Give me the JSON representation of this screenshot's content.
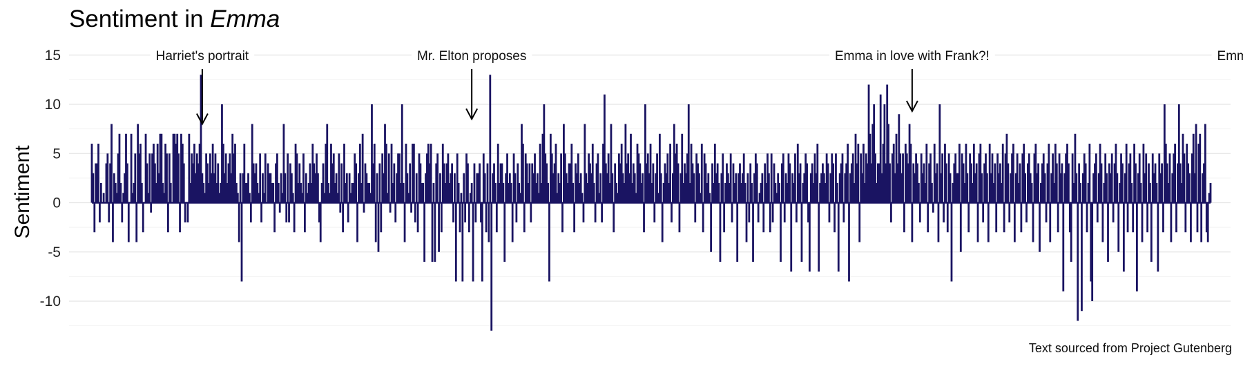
{
  "chart_data": {
    "type": "bar",
    "title_prefix": "Sentiment in ",
    "title_italic": "Emma",
    "ylabel": "Sentiment",
    "caption": "Text sourced from Project Gutenberg",
    "ylim": [
      -12.5,
      15
    ],
    "yticks": [
      -10,
      -5,
      0,
      5,
      10,
      15
    ],
    "grid": true,
    "bar_color": "#1a1462",
    "grid_color": "#e4e4e4",
    "minor_grid_color": "#f2f2f2",
    "x_start": 1,
    "values": [
      6,
      3,
      -3,
      4,
      4,
      6,
      -2,
      2,
      0,
      1,
      0,
      4,
      5,
      -2,
      4,
      8,
      -4,
      3,
      2,
      1,
      5,
      7,
      2,
      -2,
      1,
      3,
      7,
      4,
      -4,
      0,
      7,
      1,
      2,
      5,
      -4,
      8,
      5,
      6,
      2,
      -3,
      0,
      7,
      4,
      1,
      5,
      -1,
      5,
      6,
      4,
      2,
      6,
      3,
      7,
      7,
      2,
      1,
      6,
      5,
      -3,
      5,
      2,
      0,
      7,
      7,
      6,
      7,
      5,
      -3,
      7,
      6,
      4,
      -2,
      0,
      -2,
      7,
      2,
      5,
      4,
      6,
      3,
      5,
      4,
      6,
      13,
      3,
      2,
      1,
      5,
      4,
      2,
      5,
      3,
      6,
      3,
      5,
      2,
      4,
      1,
      2,
      10,
      6,
      3,
      5,
      2,
      4,
      5,
      3,
      7,
      5,
      6,
      2,
      1,
      -4,
      3,
      -8,
      3,
      6,
      2,
      2,
      3,
      1,
      -2,
      8,
      4,
      3,
      4,
      2,
      1,
      5,
      -2,
      3,
      1,
      5,
      0,
      4,
      3,
      3,
      2,
      2,
      -3,
      4,
      5,
      2,
      -1,
      3,
      1,
      8,
      3,
      -2,
      5,
      -2,
      4,
      3,
      1,
      -3,
      6,
      5,
      2,
      4,
      2,
      1,
      5,
      -3,
      3,
      1,
      2,
      4,
      2,
      6,
      4,
      3,
      5,
      3,
      -2,
      -4,
      2,
      4,
      1,
      6,
      8,
      2,
      1,
      6,
      4,
      5,
      2,
      3,
      1,
      5,
      -1,
      4,
      -3,
      6,
      2,
      3,
      -2,
      3,
      1,
      2,
      2,
      5,
      4,
      -4,
      3,
      6,
      2,
      7,
      -1,
      4,
      3,
      2,
      2,
      1,
      10,
      4,
      6,
      -4,
      3,
      -5,
      4,
      -3,
      5,
      3,
      8,
      6,
      1,
      5,
      -1,
      6,
      2,
      4,
      -2,
      3,
      5,
      5,
      2,
      10,
      2,
      -4,
      6,
      3,
      1,
      4,
      -1,
      6,
      6,
      -2,
      3,
      -3,
      5,
      4,
      2,
      2,
      -6,
      3,
      5,
      6,
      4,
      6,
      -6,
      2,
      -6,
      4,
      5,
      -5,
      3,
      -3,
      6,
      4,
      2,
      4,
      5,
      2,
      3,
      4,
      -2,
      3,
      -8,
      5,
      2,
      -3,
      1,
      -8,
      3,
      -2,
      5,
      4,
      -3,
      1,
      2,
      -8,
      4,
      -2,
      3,
      3,
      4,
      -2,
      -8,
      5,
      3,
      -3,
      4,
      -4,
      13,
      -13,
      3,
      4,
      2,
      -3,
      6,
      2,
      4,
      4,
      2,
      -6,
      3,
      5,
      2,
      3,
      2,
      -4,
      5,
      3,
      -2,
      4,
      2,
      1,
      8,
      6,
      -3,
      5,
      4,
      2,
      4,
      -2,
      4,
      3,
      5,
      2,
      3,
      1,
      6,
      2,
      7,
      10,
      5,
      4,
      2,
      -8,
      7,
      5,
      3,
      4,
      6,
      1,
      3,
      2,
      5,
      -3,
      8,
      5,
      3,
      2,
      4,
      4,
      6,
      2,
      -3,
      4,
      3,
      5,
      2,
      3,
      1,
      -2,
      8,
      3,
      2,
      5,
      4,
      3,
      6,
      2,
      -2,
      4,
      5,
      1,
      3,
      -2,
      6,
      11,
      4,
      3,
      5,
      2,
      8,
      3,
      -3,
      4,
      2,
      1,
      5,
      4,
      6,
      3,
      2,
      8,
      4,
      5,
      3,
      7,
      2,
      4,
      3,
      1,
      6,
      5,
      4,
      2,
      3,
      -3,
      10,
      4,
      5,
      3,
      6,
      2,
      4,
      -2,
      3,
      5,
      1,
      7,
      3,
      -4,
      2,
      4,
      3,
      5,
      2,
      6,
      -2,
      3,
      8,
      5,
      6,
      4,
      -3,
      3,
      7,
      2,
      4,
      3,
      5,
      10,
      2,
      6,
      4,
      3,
      -2,
      5,
      4,
      3,
      1,
      6,
      -3,
      5,
      4,
      2,
      3,
      1,
      -5,
      4,
      2,
      6,
      3,
      4,
      2,
      -6,
      3,
      5,
      -3,
      2,
      4,
      3,
      2,
      5,
      -2,
      4,
      2,
      3,
      -6,
      3,
      4,
      2,
      3,
      5,
      2,
      -4,
      3,
      -2,
      4,
      2,
      -6,
      3,
      5,
      4,
      -2,
      1,
      2,
      3,
      -3,
      4,
      2,
      5,
      3,
      -3,
      5,
      -2,
      4,
      2,
      1,
      3,
      2,
      -6,
      4,
      5,
      -2,
      3,
      2,
      5,
      4,
      -7,
      3,
      2,
      5,
      -2,
      6,
      3,
      4,
      -6,
      2,
      3,
      5,
      4,
      -2,
      -7,
      3,
      4,
      2,
      5,
      3,
      6,
      -7,
      2,
      3,
      4,
      3,
      2,
      5,
      4,
      -2,
      3,
      5,
      4,
      -3,
      5,
      2,
      -7,
      3,
      4,
      5,
      -2,
      3,
      4,
      6,
      -8,
      3,
      4,
      5,
      2,
      7,
      4,
      6,
      -4,
      5,
      3,
      6,
      2,
      5,
      4,
      12,
      7,
      4,
      8,
      10,
      5,
      2,
      4,
      4,
      11,
      3,
      6,
      10,
      4,
      12,
      8,
      4,
      -2,
      5,
      6,
      3,
      7,
      4,
      9,
      5,
      3,
      5,
      -3,
      6,
      5,
      4,
      8,
      6,
      -4,
      4,
      3,
      5,
      4,
      2,
      -2,
      5,
      3,
      4,
      2,
      6,
      -3,
      4,
      5,
      2,
      -1,
      6,
      3,
      4,
      -4,
      10,
      3,
      5,
      -2,
      6,
      4,
      -3,
      5,
      3,
      -8,
      2,
      4,
      5,
      3,
      3,
      6,
      -5,
      5,
      4,
      2,
      6,
      3,
      -3,
      5,
      4,
      2,
      6,
      3,
      4,
      -4,
      5,
      6,
      3,
      -2,
      4,
      5,
      3,
      -4,
      6,
      3,
      5,
      2,
      4,
      -3,
      5,
      3,
      4,
      2,
      6,
      -3,
      5,
      7,
      4,
      -2,
      3,
      5,
      6,
      -4,
      3,
      5,
      2,
      4,
      -3,
      5,
      6,
      3,
      -2,
      4,
      5,
      3,
      2,
      -4,
      5,
      6,
      3,
      4,
      -5,
      2,
      4,
      5,
      3,
      -2,
      4,
      6,
      -4,
      3,
      5,
      2,
      6,
      4,
      -3,
      5,
      3,
      4,
      -9,
      3,
      5,
      6,
      4,
      -3,
      -6,
      5,
      2,
      7,
      3,
      -12,
      4,
      2,
      -11,
      3,
      5,
      4,
      -3,
      2,
      6,
      -8,
      -10,
      3,
      4,
      5,
      -2,
      3,
      6,
      4,
      -4,
      2,
      5,
      3,
      -6,
      4,
      3,
      5,
      -2,
      4,
      6,
      3,
      -5,
      2,
      5,
      4,
      -7,
      3,
      6,
      -3,
      4,
      5,
      2,
      -3,
      6,
      4,
      -9,
      3,
      5,
      2,
      -4,
      6,
      3,
      5,
      -3,
      4,
      2,
      -6,
      5,
      3,
      4,
      2,
      -7,
      5,
      3,
      4,
      -3,
      10,
      6,
      4,
      2,
      5,
      -4,
      3,
      5,
      6,
      -3,
      4,
      10,
      4,
      2,
      7,
      5,
      -3,
      6,
      4,
      3,
      -4,
      5,
      7,
      3,
      8,
      -3,
      6,
      7,
      -4,
      3,
      4,
      8,
      -3,
      -4,
      1,
      2
    ]
  },
  "annotations": [
    {
      "label": "Harriet's portrait",
      "x": 85,
      "tip_y": 8
    },
    {
      "label": "Mr. Elton proposes",
      "x": 290,
      "tip_y": 8.5
    },
    {
      "label": "Emma in love with Frank?!",
      "x": 625,
      "tip_y": 9.3
    },
    {
      "label": "Emma is a jerk",
      "x": 890,
      "tip_y": 8
    }
  ]
}
